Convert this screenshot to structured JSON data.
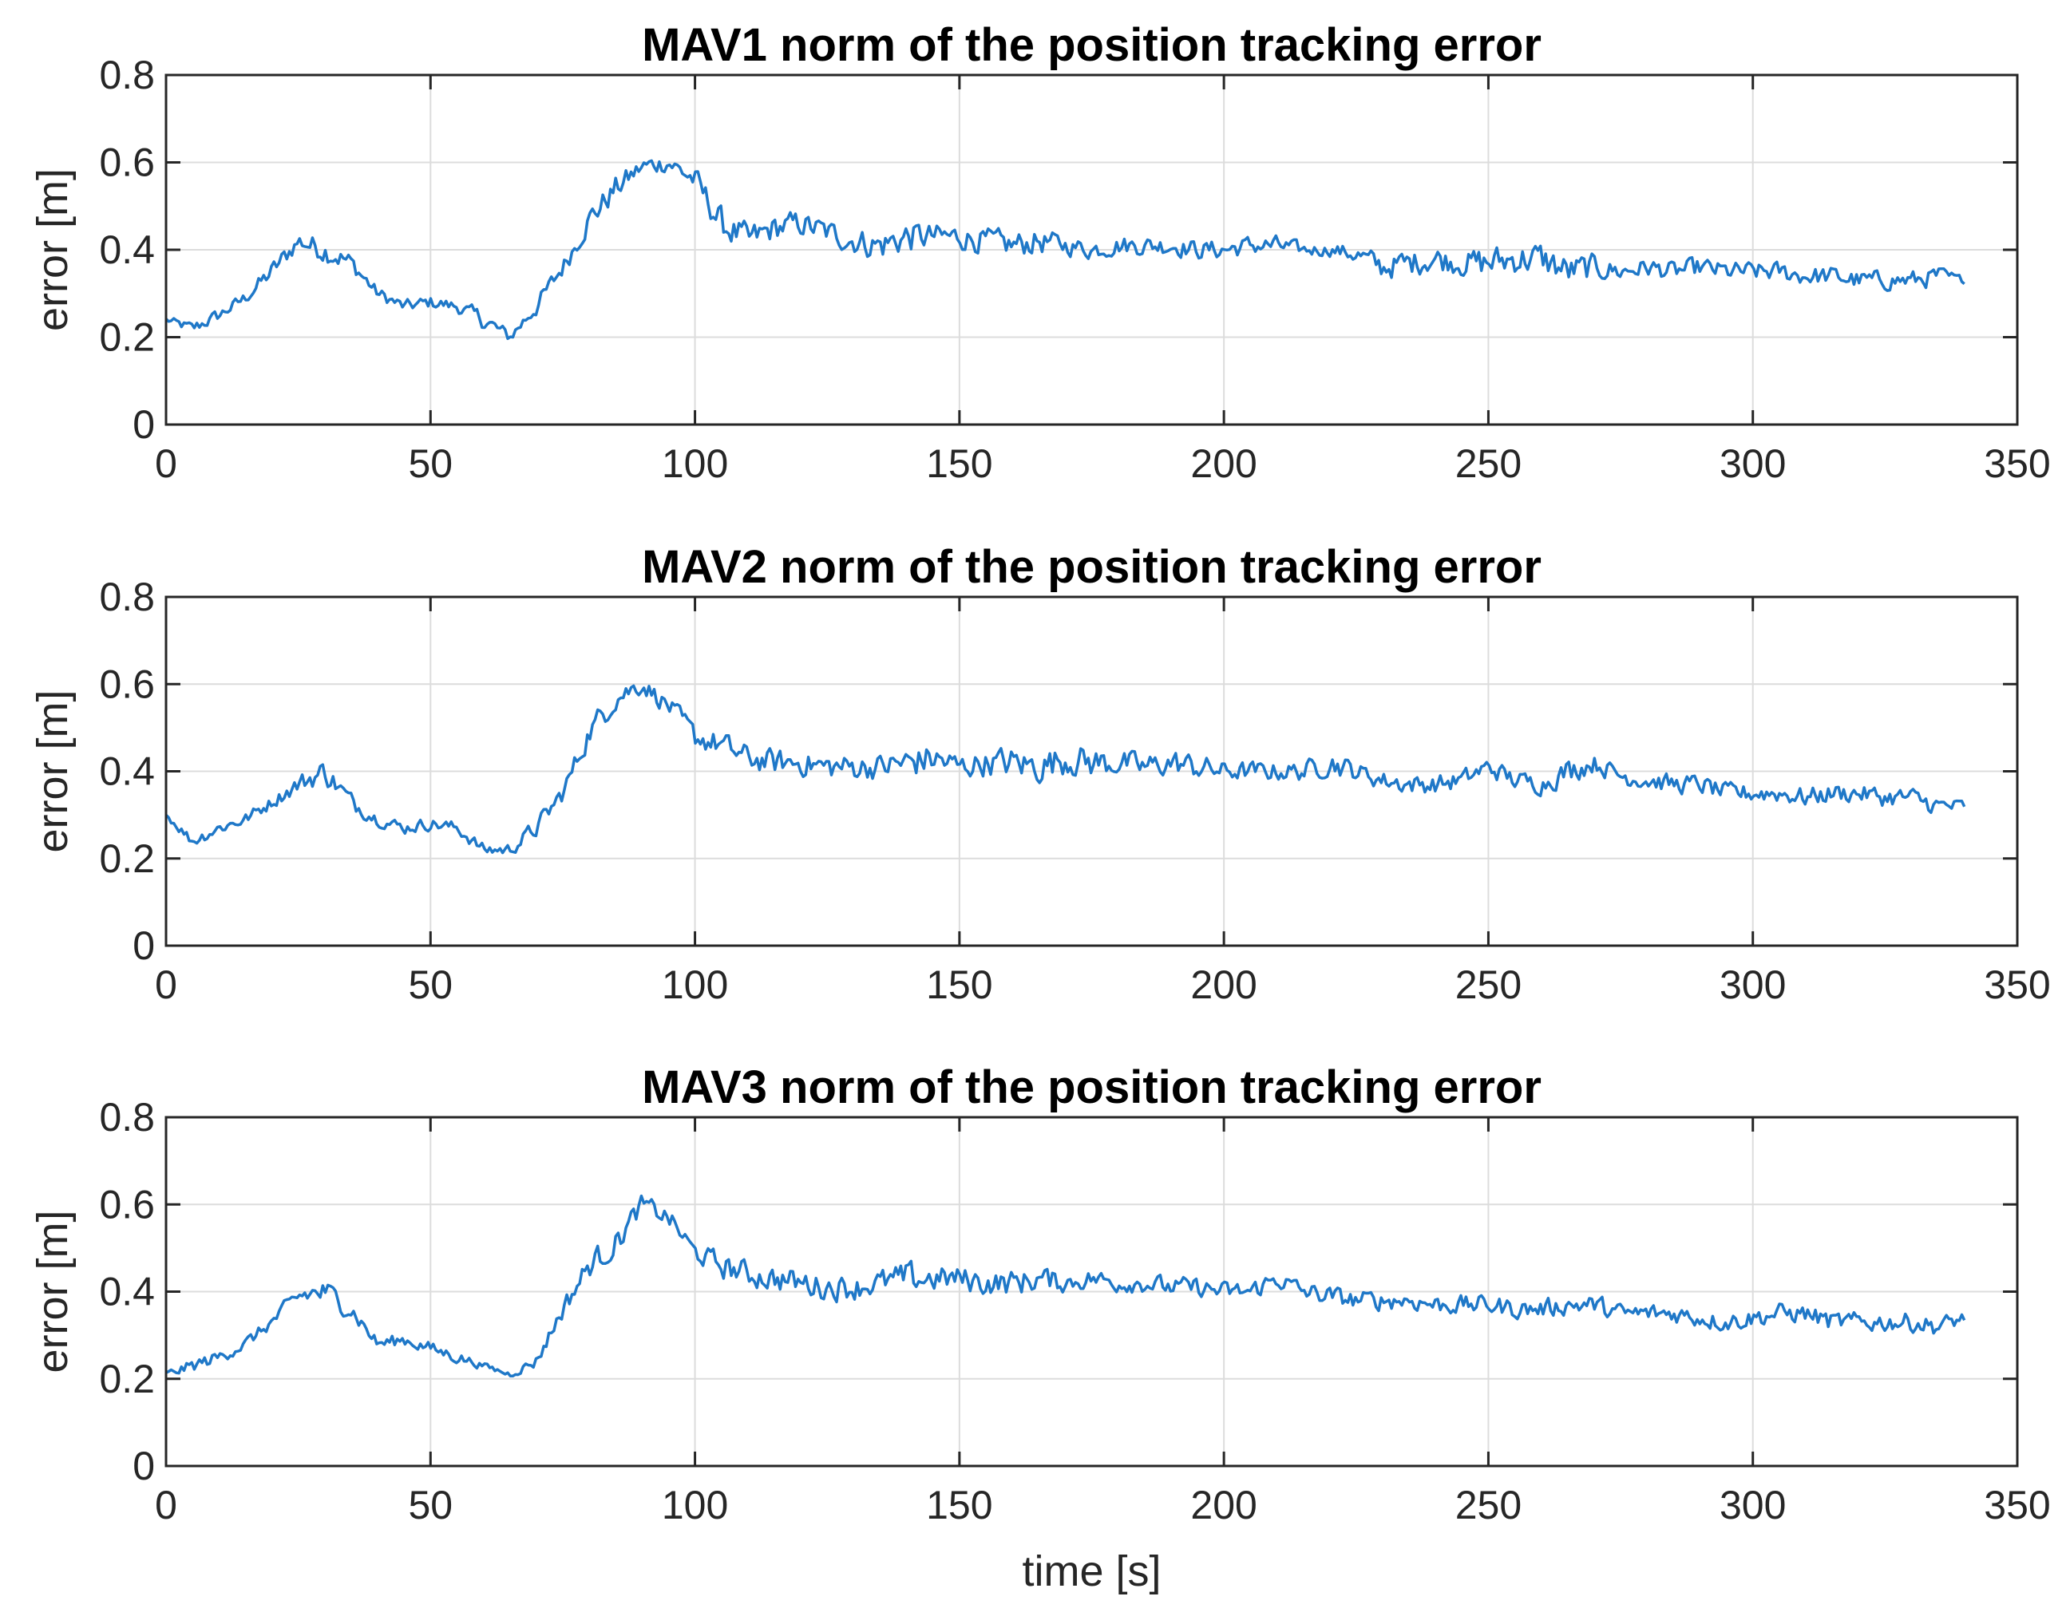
{
  "chart_data": [
    {
      "type": "line",
      "title": "MAV1 norm of the position tracking error",
      "xlabel": "",
      "ylabel": "error [m]",
      "xlim": [
        0,
        350
      ],
      "ylim": [
        0,
        0.8
      ],
      "xticks": [
        0,
        50,
        100,
        150,
        200,
        250,
        300,
        350
      ],
      "yticks": [
        0,
        0.2,
        0.4,
        0.6,
        0.8
      ],
      "grid": true,
      "color": "#1f78c8",
      "series": [
        {
          "name": "MAV1",
          "x": [
            0,
            5,
            10,
            15,
            20,
            25,
            30,
            35,
            40,
            45,
            50,
            55,
            60,
            65,
            70,
            75,
            80,
            85,
            90,
            95,
            100,
            105,
            110,
            115,
            120,
            125,
            130,
            135,
            140,
            145,
            150,
            155,
            160,
            165,
            170,
            175,
            180,
            185,
            190,
            195,
            200,
            205,
            210,
            215,
            220,
            225,
            230,
            235,
            240,
            245,
            250,
            255,
            260,
            265,
            270,
            275,
            280,
            285,
            290,
            295,
            300,
            305,
            310,
            315,
            320,
            325,
            330,
            335,
            340
          ],
          "y": [
            0.24,
            0.22,
            0.25,
            0.29,
            0.35,
            0.42,
            0.4,
            0.37,
            0.3,
            0.27,
            0.28,
            0.27,
            0.24,
            0.2,
            0.27,
            0.36,
            0.47,
            0.54,
            0.59,
            0.6,
            0.56,
            0.46,
            0.42,
            0.45,
            0.46,
            0.44,
            0.42,
            0.41,
            0.43,
            0.43,
            0.43,
            0.42,
            0.41,
            0.42,
            0.41,
            0.4,
            0.41,
            0.41,
            0.41,
            0.4,
            0.4,
            0.41,
            0.41,
            0.4,
            0.4,
            0.39,
            0.36,
            0.37,
            0.38,
            0.37,
            0.37,
            0.38,
            0.38,
            0.35,
            0.36,
            0.35,
            0.36,
            0.35,
            0.36,
            0.35,
            0.35,
            0.35,
            0.34,
            0.34,
            0.33,
            0.33,
            0.33,
            0.34,
            0.33
          ],
          "amplitude": [
            0.01,
            0.02,
            0.02,
            0.02,
            0.03,
            0.03,
            0.04,
            0.03,
            0.02,
            0.02,
            0.02,
            0.02,
            0.03,
            0.02,
            0.03,
            0.03,
            0.04,
            0.04,
            0.03,
            0.03,
            0.04,
            0.05,
            0.05,
            0.04,
            0.04,
            0.04,
            0.04,
            0.05,
            0.05,
            0.04,
            0.04,
            0.04,
            0.04,
            0.04,
            0.03,
            0.03,
            0.03,
            0.03,
            0.03,
            0.03,
            0.03,
            0.03,
            0.03,
            0.02,
            0.02,
            0.03,
            0.04,
            0.04,
            0.04,
            0.04,
            0.05,
            0.05,
            0.05,
            0.05,
            0.04,
            0.03,
            0.03,
            0.03,
            0.03,
            0.03,
            0.03,
            0.03,
            0.03,
            0.03,
            0.03,
            0.03,
            0.03,
            0.03,
            0.01
          ]
        }
      ]
    },
    {
      "type": "line",
      "title": "MAV2 norm of the position tracking error",
      "xlabel": "",
      "ylabel": "error [m]",
      "xlim": [
        0,
        350
      ],
      "ylim": [
        0,
        0.8
      ],
      "xticks": [
        0,
        50,
        100,
        150,
        200,
        250,
        300,
        350
      ],
      "yticks": [
        0,
        0.2,
        0.4,
        0.6,
        0.8
      ],
      "grid": true,
      "color": "#1f78c8",
      "series": [
        {
          "name": "MAV2",
          "x": [
            0,
            5,
            10,
            15,
            20,
            25,
            30,
            35,
            40,
            45,
            50,
            55,
            60,
            65,
            70,
            75,
            80,
            85,
            90,
            95,
            100,
            105,
            110,
            115,
            120,
            125,
            130,
            135,
            140,
            145,
            150,
            155,
            160,
            165,
            170,
            175,
            180,
            185,
            190,
            195,
            200,
            205,
            210,
            215,
            220,
            225,
            230,
            235,
            240,
            245,
            250,
            255,
            260,
            265,
            270,
            275,
            280,
            285,
            290,
            295,
            300,
            305,
            310,
            315,
            320,
            325,
            330,
            335,
            340
          ],
          "y": [
            0.3,
            0.24,
            0.27,
            0.29,
            0.33,
            0.37,
            0.4,
            0.33,
            0.29,
            0.27,
            0.28,
            0.27,
            0.22,
            0.22,
            0.27,
            0.35,
            0.49,
            0.57,
            0.6,
            0.55,
            0.48,
            0.46,
            0.43,
            0.42,
            0.42,
            0.41,
            0.41,
            0.41,
            0.42,
            0.43,
            0.41,
            0.42,
            0.42,
            0.41,
            0.43,
            0.42,
            0.42,
            0.41,
            0.42,
            0.41,
            0.4,
            0.4,
            0.4,
            0.4,
            0.42,
            0.4,
            0.38,
            0.37,
            0.37,
            0.38,
            0.41,
            0.38,
            0.37,
            0.4,
            0.42,
            0.39,
            0.38,
            0.37,
            0.37,
            0.35,
            0.35,
            0.35,
            0.34,
            0.35,
            0.35,
            0.34,
            0.34,
            0.32,
            0.32
          ],
          "amplitude": [
            0.01,
            0.02,
            0.02,
            0.02,
            0.02,
            0.03,
            0.04,
            0.03,
            0.02,
            0.02,
            0.02,
            0.02,
            0.02,
            0.02,
            0.03,
            0.03,
            0.04,
            0.04,
            0.03,
            0.03,
            0.04,
            0.04,
            0.04,
            0.04,
            0.04,
            0.04,
            0.04,
            0.04,
            0.05,
            0.05,
            0.04,
            0.04,
            0.05,
            0.05,
            0.05,
            0.05,
            0.04,
            0.04,
            0.04,
            0.04,
            0.03,
            0.03,
            0.03,
            0.03,
            0.04,
            0.03,
            0.03,
            0.03,
            0.03,
            0.03,
            0.03,
            0.03,
            0.03,
            0.04,
            0.03,
            0.03,
            0.03,
            0.03,
            0.03,
            0.03,
            0.03,
            0.03,
            0.03,
            0.03,
            0.03,
            0.03,
            0.03,
            0.03,
            0.02
          ]
        }
      ]
    },
    {
      "type": "line",
      "title": "MAV3 norm of the position tracking error",
      "xlabel": "time [s]",
      "ylabel": "error [m]",
      "xlim": [
        0,
        350
      ],
      "ylim": [
        0,
        0.8
      ],
      "xticks": [
        0,
        50,
        100,
        150,
        200,
        250,
        300,
        350
      ],
      "yticks": [
        0,
        0.2,
        0.4,
        0.6,
        0.8
      ],
      "grid": true,
      "color": "#1f78c8",
      "series": [
        {
          "name": "MAV3",
          "x": [
            0,
            5,
            10,
            15,
            20,
            25,
            30,
            35,
            40,
            45,
            50,
            55,
            60,
            65,
            70,
            75,
            80,
            85,
            90,
            95,
            100,
            105,
            110,
            115,
            120,
            125,
            130,
            135,
            140,
            145,
            150,
            155,
            160,
            165,
            170,
            175,
            180,
            185,
            190,
            195,
            200,
            205,
            210,
            215,
            220,
            225,
            230,
            235,
            240,
            245,
            250,
            255,
            260,
            265,
            270,
            275,
            280,
            285,
            290,
            295,
            300,
            305,
            310,
            315,
            320,
            325,
            330,
            335,
            340
          ],
          "y": [
            0.21,
            0.23,
            0.25,
            0.28,
            0.33,
            0.39,
            0.4,
            0.36,
            0.28,
            0.29,
            0.27,
            0.25,
            0.23,
            0.21,
            0.24,
            0.36,
            0.46,
            0.51,
            0.6,
            0.57,
            0.49,
            0.46,
            0.44,
            0.43,
            0.42,
            0.41,
            0.41,
            0.42,
            0.43,
            0.43,
            0.43,
            0.42,
            0.42,
            0.43,
            0.42,
            0.43,
            0.42,
            0.42,
            0.41,
            0.41,
            0.4,
            0.4,
            0.43,
            0.4,
            0.39,
            0.38,
            0.38,
            0.38,
            0.37,
            0.37,
            0.37,
            0.36,
            0.36,
            0.37,
            0.37,
            0.35,
            0.35,
            0.35,
            0.34,
            0.33,
            0.34,
            0.35,
            0.35,
            0.33,
            0.33,
            0.33,
            0.33,
            0.32,
            0.34
          ],
          "amplitude": [
            0.01,
            0.02,
            0.02,
            0.02,
            0.02,
            0.03,
            0.04,
            0.03,
            0.02,
            0.02,
            0.02,
            0.02,
            0.01,
            0.01,
            0.02,
            0.03,
            0.04,
            0.04,
            0.03,
            0.03,
            0.03,
            0.04,
            0.04,
            0.04,
            0.04,
            0.04,
            0.04,
            0.04,
            0.05,
            0.04,
            0.04,
            0.04,
            0.04,
            0.04,
            0.03,
            0.03,
            0.03,
            0.03,
            0.03,
            0.03,
            0.03,
            0.03,
            0.03,
            0.03,
            0.03,
            0.03,
            0.03,
            0.03,
            0.03,
            0.03,
            0.03,
            0.03,
            0.03,
            0.03,
            0.03,
            0.03,
            0.03,
            0.03,
            0.03,
            0.03,
            0.03,
            0.03,
            0.03,
            0.03,
            0.03,
            0.03,
            0.03,
            0.03,
            0.02
          ]
        }
      ]
    }
  ]
}
